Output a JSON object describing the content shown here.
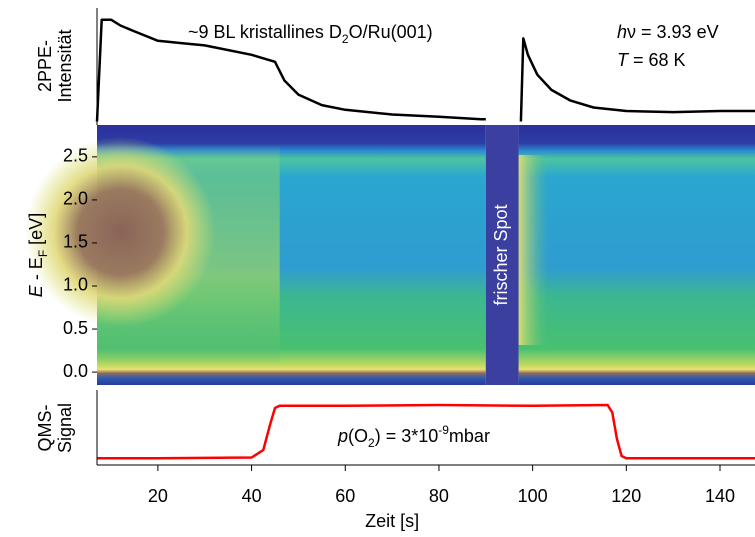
{
  "chart_data": [
    {
      "type": "line",
      "ylabel": [
        "2PPE-",
        "Intensität"
      ],
      "annotations": {
        "sample": [
          "~9 BL kristallines D",
          "2",
          "O/Ru(001)"
        ],
        "photon": [
          "h",
          "ν = 3.93 eV"
        ],
        "temperature": [
          "T",
          " = 68 K"
        ]
      },
      "x": [
        7,
        8,
        10,
        12,
        15,
        20,
        25,
        30,
        40,
        45,
        47,
        50,
        55,
        60,
        70,
        80,
        89,
        90,
        93,
        97.5,
        98,
        99,
        101,
        104,
        108,
        113,
        120,
        130,
        140,
        147.6
      ],
      "values": [
        0.03,
        0.9,
        0.9,
        0.85,
        0.8,
        0.72,
        0.7,
        0.68,
        0.6,
        0.54,
        0.38,
        0.26,
        0.17,
        0.13,
        0.09,
        0.07,
        0.05,
        0.05,
        null,
        0.03,
        0.74,
        0.6,
        0.43,
        0.3,
        0.21,
        0.15,
        0.12,
        0.11,
        0.12,
        0.12
      ],
      "color": "#000000",
      "ylim": [
        0,
        1
      ]
    },
    {
      "type": "heatmap",
      "ylabel": [
        "E",
        " - E",
        "F",
        " [eV]"
      ],
      "annotation": "frischer Spot",
      "x_gap": [
        90,
        97
      ],
      "ylim": [
        -0.15,
        2.87
      ],
      "yticks": [
        {
          "value": 0,
          "label": "0.0"
        },
        0.5,
        {
          "value": 1,
          "label": "1.0"
        },
        1.5,
        {
          "value": 2,
          "label": "2.0"
        },
        2.5
      ]
    },
    {
      "type": "line",
      "ylabel": [
        "QMS-",
        "Signal"
      ],
      "annotation": [
        "p",
        "(O",
        "2",
        ") = 3*10",
        "-9",
        "mbar"
      ],
      "x": [
        7,
        20,
        40,
        42.5,
        44,
        45,
        46,
        60,
        80,
        100,
        116,
        117,
        118,
        119,
        120,
        130,
        147.6
      ],
      "values": [
        0.09,
        0.09,
        0.1,
        0.2,
        0.55,
        0.76,
        0.79,
        0.79,
        0.8,
        0.79,
        0.8,
        0.7,
        0.35,
        0.12,
        0.09,
        0.09,
        0.09
      ],
      "color": "#ff0000",
      "ylim": [
        0,
        1
      ],
      "xlim": [
        7,
        147.6
      ],
      "xticks": [
        20,
        40,
        60,
        80,
        100,
        120,
        140
      ],
      "xlabel": "Zeit [s]"
    }
  ]
}
